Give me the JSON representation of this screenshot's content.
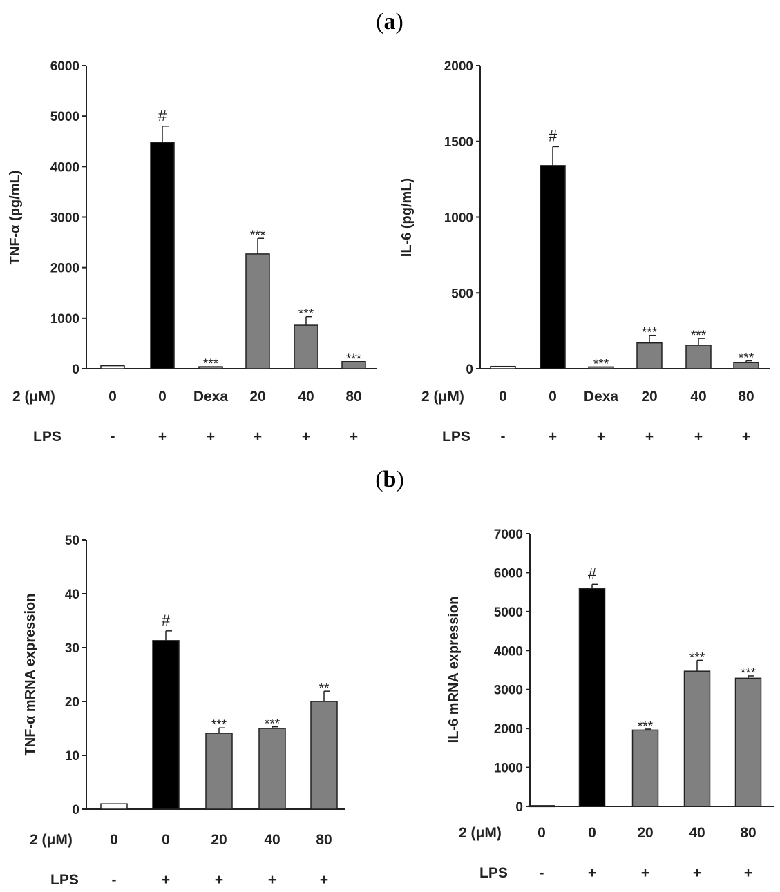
{
  "panels": [
    {
      "label_open": "(",
      "label_letter": "a",
      "label_close": ")"
    },
    {
      "label_open": "(",
      "label_letter": "b",
      "label_close": ")"
    }
  ],
  "colors": {
    "control": "#ffffff",
    "lps": "#000000",
    "treated": "#808080",
    "axis": "#222222"
  },
  "chart_data": [
    {
      "type": "bar",
      "panel": "a",
      "title": "",
      "ylabel": "TNF-α (pg/mL)",
      "ylim": [
        0,
        6000
      ],
      "yticks": [
        "0",
        "1000",
        "2000",
        "3000",
        "4000",
        "5000",
        "6000"
      ],
      "row1_label": "2 (μM)",
      "row2_label": "LPS",
      "categories": [
        "0",
        "0",
        "Dexa",
        "20",
        "40",
        "80"
      ],
      "lps": [
        "-",
        "+",
        "+",
        "+",
        "+",
        "+"
      ],
      "values": [
        60,
        4480,
        40,
        2270,
        860,
        140
      ],
      "errors": [
        0,
        320,
        0,
        310,
        170,
        0
      ],
      "annotations": [
        "",
        "#",
        "***",
        "***",
        "***",
        "***"
      ],
      "bar_colors": [
        "control",
        "lps",
        "treated",
        "treated",
        "treated",
        "treated"
      ]
    },
    {
      "type": "bar",
      "panel": "a",
      "title": "",
      "ylabel": "IL-6 (pg/mL)",
      "ylim": [
        0,
        2000
      ],
      "yticks": [
        "0",
        "500",
        "1000",
        "1500",
        "2000"
      ],
      "row1_label": "2 (μM)",
      "row2_label": "LPS",
      "categories": [
        "0",
        "0",
        "Dexa",
        "20",
        "40",
        "80"
      ],
      "lps": [
        "-",
        "+",
        "+",
        "+",
        "+",
        "+"
      ],
      "values": [
        15,
        1340,
        12,
        170,
        155,
        40
      ],
      "errors": [
        0,
        125,
        0,
        50,
        45,
        12
      ],
      "annotations": [
        "",
        "#",
        "***",
        "***",
        "***",
        "***"
      ],
      "bar_colors": [
        "control",
        "lps",
        "treated",
        "treated",
        "treated",
        "treated"
      ]
    },
    {
      "type": "bar",
      "panel": "b",
      "title": "",
      "ylabel": "TNF-α mRNA expression",
      "ylim": [
        0,
        50
      ],
      "yticks": [
        "0",
        "10",
        "20",
        "30",
        "40",
        "50"
      ],
      "row1_label": "2 (μM)",
      "row2_label": "LPS",
      "categories": [
        "0",
        "0",
        "20",
        "40",
        "80"
      ],
      "lps": [
        "-",
        "+",
        "+",
        "+",
        "+"
      ],
      "values": [
        1,
        31.3,
        14.1,
        15.0,
        20.0
      ],
      "errors": [
        0,
        1.8,
        1.0,
        0.3,
        1.9
      ],
      "annotations": [
        "",
        "#",
        "***",
        "***",
        "**"
      ],
      "bar_colors": [
        "control",
        "lps",
        "treated",
        "treated",
        "treated"
      ]
    },
    {
      "type": "bar",
      "panel": "b",
      "title": "",
      "ylabel": "IL-6 mRNA expression",
      "ylim": [
        0,
        7000
      ],
      "yticks": [
        "0",
        "1000",
        "2000",
        "3000",
        "4000",
        "5000",
        "6000",
        "7000"
      ],
      "row1_label": "2 (μM)",
      "row2_label": "LPS",
      "categories": [
        "0",
        "0",
        "20",
        "40",
        "80"
      ],
      "lps": [
        "-",
        "+",
        "+",
        "+",
        "+"
      ],
      "values": [
        20,
        5590,
        1960,
        3470,
        3290
      ],
      "errors": [
        0,
        110,
        25,
        280,
        60
      ],
      "annotations": [
        "",
        "#",
        "***",
        "***",
        "***"
      ],
      "bar_colors": [
        "control",
        "lps",
        "treated",
        "treated",
        "treated"
      ]
    }
  ]
}
